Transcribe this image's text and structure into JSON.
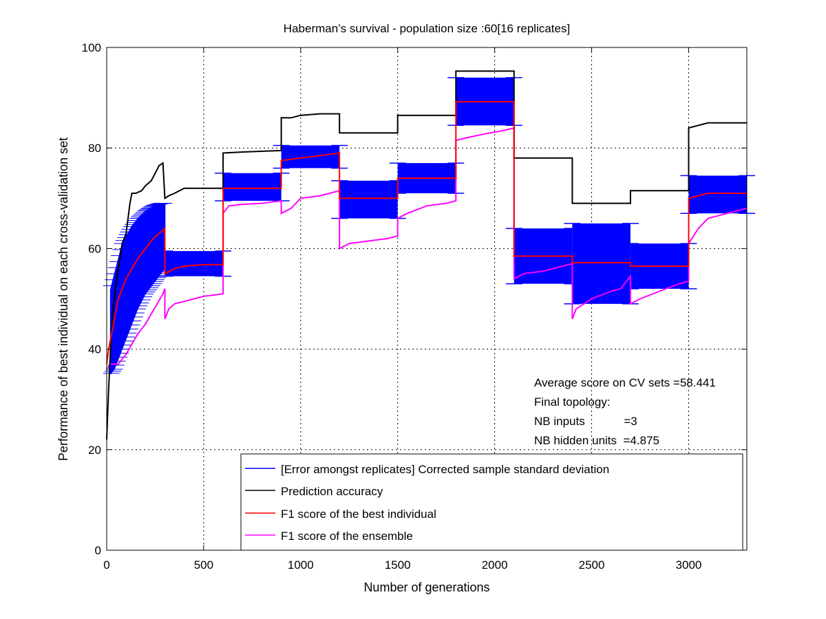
{
  "chart_data": {
    "type": "line",
    "title": "Haberman’s survival - population size :60[16 replicates]",
    "xlabel": "Number of generations",
    "ylabel": "Performance of best individual on each cross-validation set",
    "xlim": [
      0,
      3300
    ],
    "ylim": [
      0,
      100
    ],
    "xticks": [
      0,
      500,
      1000,
      1500,
      2000,
      2500,
      3000
    ],
    "yticks": [
      0,
      20,
      40,
      60,
      80,
      100
    ],
    "grid": true,
    "legend_position": "bottom-right",
    "legend": [
      "[Error amongst replicates] Corrected sample standard deviation",
      "Prediction accuracy",
      "F1 score of the best individual",
      "F1 score of the ensemble"
    ],
    "annotations": [
      "Average score on CV sets =58.441",
      "Final topology:",
      "NB inputs            =3",
      "NB hidden units  =4.875"
    ],
    "colors": {
      "error": "#0000ff",
      "accuracy": "#000000",
      "f1_best": "#ff0000",
      "f1_ensemble": "#ff00ff",
      "grid": "#000000"
    },
    "series": [
      {
        "name": "Prediction accuracy",
        "color": "#000000",
        "points": [
          [
            0,
            22
          ],
          [
            10,
            32
          ],
          [
            20,
            40
          ],
          [
            30,
            47
          ],
          [
            45,
            52
          ],
          [
            60,
            56
          ],
          [
            80,
            61
          ],
          [
            100,
            63
          ],
          [
            110,
            66
          ],
          [
            120,
            69
          ],
          [
            130,
            71
          ],
          [
            150,
            71
          ],
          [
            180,
            71.5
          ],
          [
            200,
            72.5
          ],
          [
            230,
            73.5
          ],
          [
            250,
            75
          ],
          [
            270,
            76.5
          ],
          [
            290,
            77
          ],
          [
            300,
            70
          ],
          [
            320,
            70.5
          ],
          [
            350,
            71
          ],
          [
            400,
            72
          ],
          [
            500,
            72
          ],
          [
            600,
            72
          ],
          [
            600,
            79
          ],
          [
            700,
            79.2
          ],
          [
            900,
            79.5
          ],
          [
            900,
            86
          ],
          [
            950,
            86
          ],
          [
            1000,
            86.5
          ],
          [
            1100,
            86.8
          ],
          [
            1200,
            86.8
          ],
          [
            1200,
            83
          ],
          [
            1500,
            83
          ],
          [
            1500,
            86.5
          ],
          [
            1800,
            86.5
          ],
          [
            1800,
            95.3
          ],
          [
            2100,
            95.3
          ],
          [
            2100,
            78
          ],
          [
            2400,
            78
          ],
          [
            2400,
            69
          ],
          [
            2700,
            69
          ],
          [
            2700,
            71.5
          ],
          [
            3000,
            71.5
          ],
          [
            3000,
            84
          ],
          [
            3050,
            84.5
          ],
          [
            3100,
            85
          ],
          [
            3300,
            85
          ]
        ]
      },
      {
        "name": "F1 score of the best individual",
        "color": "#ff0000",
        "points": [
          [
            0,
            37
          ],
          [
            10,
            40
          ],
          [
            20,
            42
          ],
          [
            30,
            44
          ],
          [
            45,
            47
          ],
          [
            60,
            50
          ],
          [
            80,
            52
          ],
          [
            100,
            54
          ],
          [
            130,
            56
          ],
          [
            160,
            58
          ],
          [
            200,
            60
          ],
          [
            240,
            62
          ],
          [
            270,
            63
          ],
          [
            300,
            64
          ],
          [
            300,
            55
          ],
          [
            350,
            56
          ],
          [
            400,
            56.5
          ],
          [
            500,
            56.8
          ],
          [
            600,
            56.8
          ],
          [
            600,
            72
          ],
          [
            700,
            72
          ],
          [
            900,
            72
          ],
          [
            900,
            77.5
          ],
          [
            1000,
            78
          ],
          [
            1100,
            78.5
          ],
          [
            1200,
            79
          ],
          [
            1200,
            70
          ],
          [
            1500,
            70
          ],
          [
            1500,
            74
          ],
          [
            1800,
            74
          ],
          [
            1800,
            89.2
          ],
          [
            2100,
            89.2
          ],
          [
            2100,
            58.5
          ],
          [
            2400,
            58.5
          ],
          [
            2400,
            57.2
          ],
          [
            2700,
            57.2
          ],
          [
            2700,
            56.5
          ],
          [
            3000,
            56.5
          ],
          [
            3000,
            70
          ],
          [
            3100,
            71
          ],
          [
            3300,
            71
          ]
        ]
      },
      {
        "name": "F1 score of the ensemble",
        "color": "#ff00ff",
        "points": [
          [
            0,
            36
          ],
          [
            20,
            37
          ],
          [
            60,
            37
          ],
          [
            80,
            38
          ],
          [
            100,
            39
          ],
          [
            130,
            41
          ],
          [
            160,
            43
          ],
          [
            200,
            45
          ],
          [
            230,
            47
          ],
          [
            260,
            49
          ],
          [
            290,
            51
          ],
          [
            300,
            52
          ],
          [
            300,
            46
          ],
          [
            320,
            48
          ],
          [
            350,
            49
          ],
          [
            400,
            49.5
          ],
          [
            450,
            50
          ],
          [
            500,
            50.5
          ],
          [
            600,
            51
          ],
          [
            600,
            67
          ],
          [
            630,
            68.5
          ],
          [
            700,
            68.8
          ],
          [
            800,
            69
          ],
          [
            900,
            69.5
          ],
          [
            900,
            67
          ],
          [
            950,
            68
          ],
          [
            1000,
            70
          ],
          [
            1100,
            70.5
          ],
          [
            1200,
            71.5
          ],
          [
            1200,
            60
          ],
          [
            1250,
            61
          ],
          [
            1350,
            61.5
          ],
          [
            1450,
            62
          ],
          [
            1500,
            62.5
          ],
          [
            1500,
            66
          ],
          [
            1550,
            67
          ],
          [
            1650,
            68.5
          ],
          [
            1750,
            69
          ],
          [
            1800,
            69.5
          ],
          [
            1800,
            81.5
          ],
          [
            1850,
            82
          ],
          [
            1950,
            82.8
          ],
          [
            2050,
            83.5
          ],
          [
            2100,
            84
          ],
          [
            2100,
            54
          ],
          [
            2150,
            55
          ],
          [
            2250,
            55.5
          ],
          [
            2350,
            56.5
          ],
          [
            2400,
            57
          ],
          [
            2400,
            46
          ],
          [
            2420,
            48
          ],
          [
            2500,
            50
          ],
          [
            2600,
            51.5
          ],
          [
            2650,
            52
          ],
          [
            2700,
            54.5
          ],
          [
            2700,
            49
          ],
          [
            2750,
            50
          ],
          [
            2850,
            51.5
          ],
          [
            2950,
            53
          ],
          [
            3000,
            53.5
          ],
          [
            3000,
            61
          ],
          [
            3050,
            64
          ],
          [
            3100,
            66
          ],
          [
            3200,
            67
          ],
          [
            3300,
            68
          ]
        ]
      }
    ],
    "error_bands": [
      {
        "x0": 300,
        "x1": 600,
        "lo": 54.5,
        "hi": 59.5
      },
      {
        "x0": 600,
        "x1": 900,
        "lo": 69.5,
        "hi": 75
      },
      {
        "x0": 900,
        "x1": 1200,
        "lo": 76,
        "hi": 80.5
      },
      {
        "x0": 1200,
        "x1": 1500,
        "lo": 66,
        "hi": 73.5
      },
      {
        "x0": 1500,
        "x1": 1800,
        "lo": 71,
        "hi": 77
      },
      {
        "x0": 1800,
        "x1": 2100,
        "lo": 84.5,
        "hi": 94
      },
      {
        "x0": 2100,
        "x1": 2400,
        "lo": 53,
        "hi": 64
      },
      {
        "x0": 2400,
        "x1": 2700,
        "lo": 49,
        "hi": 65
      },
      {
        "x0": 2700,
        "x1": 3000,
        "lo": 52,
        "hi": 61
      },
      {
        "x0": 3000,
        "x1": 3300,
        "lo": 67,
        "hi": 74.5
      }
    ],
    "early_error": [
      {
        "x": 20,
        "lo": 35,
        "hi": 52
      },
      {
        "x": 40,
        "lo": 36,
        "hi": 55
      },
      {
        "x": 60,
        "lo": 38,
        "hi": 58
      },
      {
        "x": 80,
        "lo": 40,
        "hi": 61
      },
      {
        "x": 100,
        "lo": 42,
        "hi": 62.5
      },
      {
        "x": 130,
        "lo": 45,
        "hi": 64.5
      },
      {
        "x": 160,
        "lo": 48,
        "hi": 66
      },
      {
        "x": 200,
        "lo": 51,
        "hi": 67.5
      },
      {
        "x": 240,
        "lo": 53,
        "hi": 68.5
      },
      {
        "x": 280,
        "lo": 55,
        "hi": 69
      },
      {
        "x": 300,
        "lo": 56,
        "hi": 69
      }
    ]
  }
}
